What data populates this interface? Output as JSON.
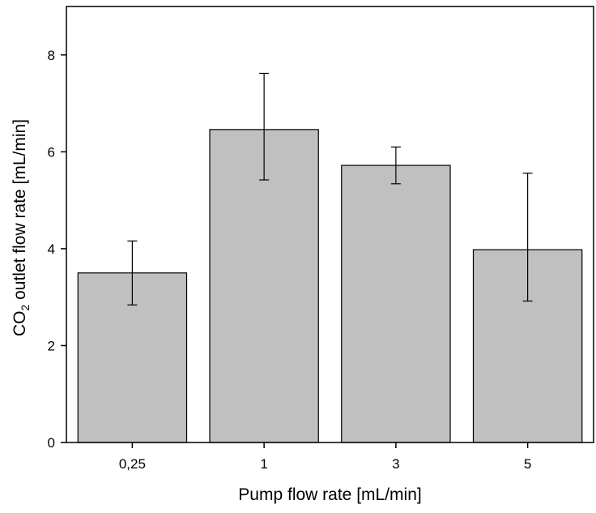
{
  "chart_data": {
    "type": "bar",
    "xlabel": "Pump flow rate [mL/min]",
    "ylabel": {
      "prefix": "CO",
      "subscript": "2",
      "suffix": " outlet flow rate [mL/min]"
    },
    "categories": [
      "0,25",
      "1",
      "3",
      "5"
    ],
    "values": [
      3.5,
      6.46,
      5.72,
      3.98
    ],
    "errors": [
      {
        "low": 2.84,
        "high": 4.16
      },
      {
        "low": 5.42,
        "high": 7.62
      },
      {
        "low": 5.34,
        "high": 6.1
      },
      {
        "low": 2.92,
        "high": 5.56
      }
    ],
    "ylim": [
      0,
      9
    ],
    "yticks": [
      0,
      2,
      4,
      6,
      8
    ],
    "grid": false,
    "colors": {
      "bar_fill": "#c0c0c0",
      "bar_stroke": "#000000",
      "axis": "#000000"
    }
  }
}
